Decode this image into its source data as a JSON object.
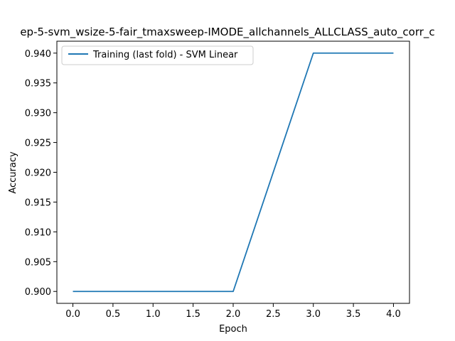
{
  "chart_data": {
    "type": "line",
    "title": "ep-5-svm_wsize-5-fair_tmaxsweep-IMODE_allchannels_ALLCLASS_auto_corr_c",
    "xlabel": "Epoch",
    "ylabel": "Accuracy",
    "xlim": [
      -0.2,
      4.2
    ],
    "ylim": [
      0.898,
      0.942
    ],
    "x_ticks": [
      0.0,
      0.5,
      1.0,
      1.5,
      2.0,
      2.5,
      3.0,
      3.5,
      4.0
    ],
    "x_tick_labels": [
      "0.0",
      "0.5",
      "1.0",
      "1.5",
      "2.0",
      "2.5",
      "3.0",
      "3.5",
      "4.0"
    ],
    "y_ticks": [
      0.9,
      0.905,
      0.91,
      0.915,
      0.92,
      0.925,
      0.93,
      0.935,
      0.94
    ],
    "y_tick_labels": [
      "0.900",
      "0.905",
      "0.910",
      "0.915",
      "0.920",
      "0.925",
      "0.930",
      "0.935",
      "0.940"
    ],
    "grid": false,
    "legend_position": "top-left",
    "series": [
      {
        "name": "Training (last fold) - SVM Linear",
        "color": "#1f77b4",
        "x": [
          0,
          1,
          2,
          3,
          4
        ],
        "values": [
          0.9,
          0.9,
          0.9,
          0.94,
          0.94
        ]
      }
    ]
  }
}
